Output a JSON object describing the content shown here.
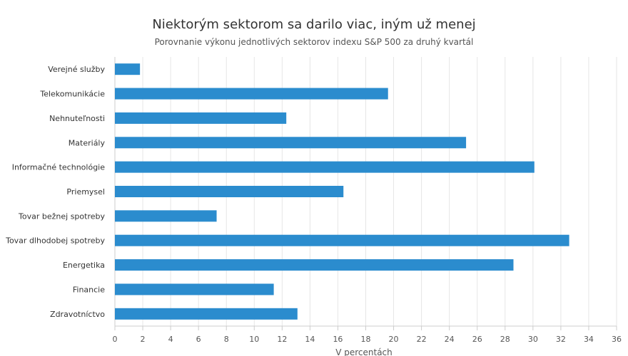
{
  "chart_data": {
    "type": "bar",
    "orientation": "horizontal",
    "title": "Niektorým sektorom sa darilo viac, iným už menej",
    "subtitle": "Porovnanie výkonu jednotlivých sektorov indexu S&P 500 za druhý kvartál",
    "xlabel": "V percentách",
    "ylabel": "",
    "xlim": [
      0,
      36
    ],
    "x_ticks": [
      0,
      2,
      4,
      6,
      8,
      10,
      12,
      14,
      16,
      18,
      20,
      22,
      24,
      26,
      28,
      30,
      32,
      34,
      36
    ],
    "grid": true,
    "legend": "none",
    "bar_color": "#2b8cce",
    "categories": [
      "Verejné služby",
      "Telekomunikácie",
      "Nehnuteľnosti",
      "Materiály",
      "Informačné technológie",
      "Priemysel",
      "Tovar bežnej spotreby",
      "Tovar dlhodobej spotreby",
      "Energetika",
      "Financie",
      "Zdravotníctvo"
    ],
    "values": [
      1.8,
      19.6,
      12.3,
      25.2,
      30.1,
      16.4,
      7.3,
      32.6,
      28.6,
      11.4,
      13.1
    ]
  }
}
